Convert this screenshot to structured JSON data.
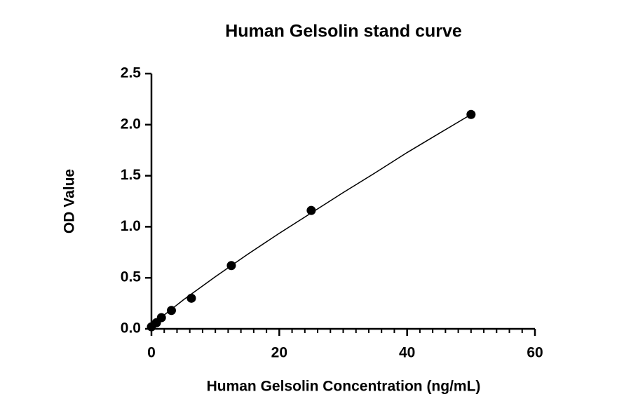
{
  "chart_data": {
    "type": "scatter",
    "title": "Human Gelsolin stand curve",
    "x_label": "Human Gelsolin Concentration (ng/mL)",
    "y_label": "OD Value",
    "x": [
      0,
      0.78,
      1.56,
      3.125,
      6.25,
      12.5,
      25,
      50
    ],
    "values": [
      0.02,
      0.06,
      0.11,
      0.18,
      0.3,
      0.62,
      1.16,
      2.1
    ],
    "color": "#000000",
    "curve": {
      "x": [
        0,
        2,
        5,
        10,
        15,
        20,
        25,
        30,
        35,
        40,
        45,
        50
      ],
      "y": [
        0.02,
        0.136,
        0.284,
        0.511,
        0.728,
        0.936,
        1.135,
        1.335,
        1.528,
        1.727,
        1.914,
        2.1
      ]
    },
    "xlim": [
      0,
      60
    ],
    "xticks": [
      0,
      20,
      40,
      60
    ],
    "xminorticks": [
      2,
      4,
      6,
      8,
      10,
      12,
      14,
      16,
      18,
      22,
      24,
      26,
      28,
      30,
      32,
      34,
      36,
      38,
      42,
      44,
      46,
      48,
      50,
      52,
      54,
      56,
      58
    ],
    "ylim": [
      0,
      2.5
    ],
    "yticks": [
      {
        "value": 0,
        "label": "0.0"
      },
      0.5,
      {
        "value": 1,
        "label": "1.0"
      },
      1.5,
      {
        "value": 2,
        "label": "2.0"
      },
      2.5
    ]
  }
}
